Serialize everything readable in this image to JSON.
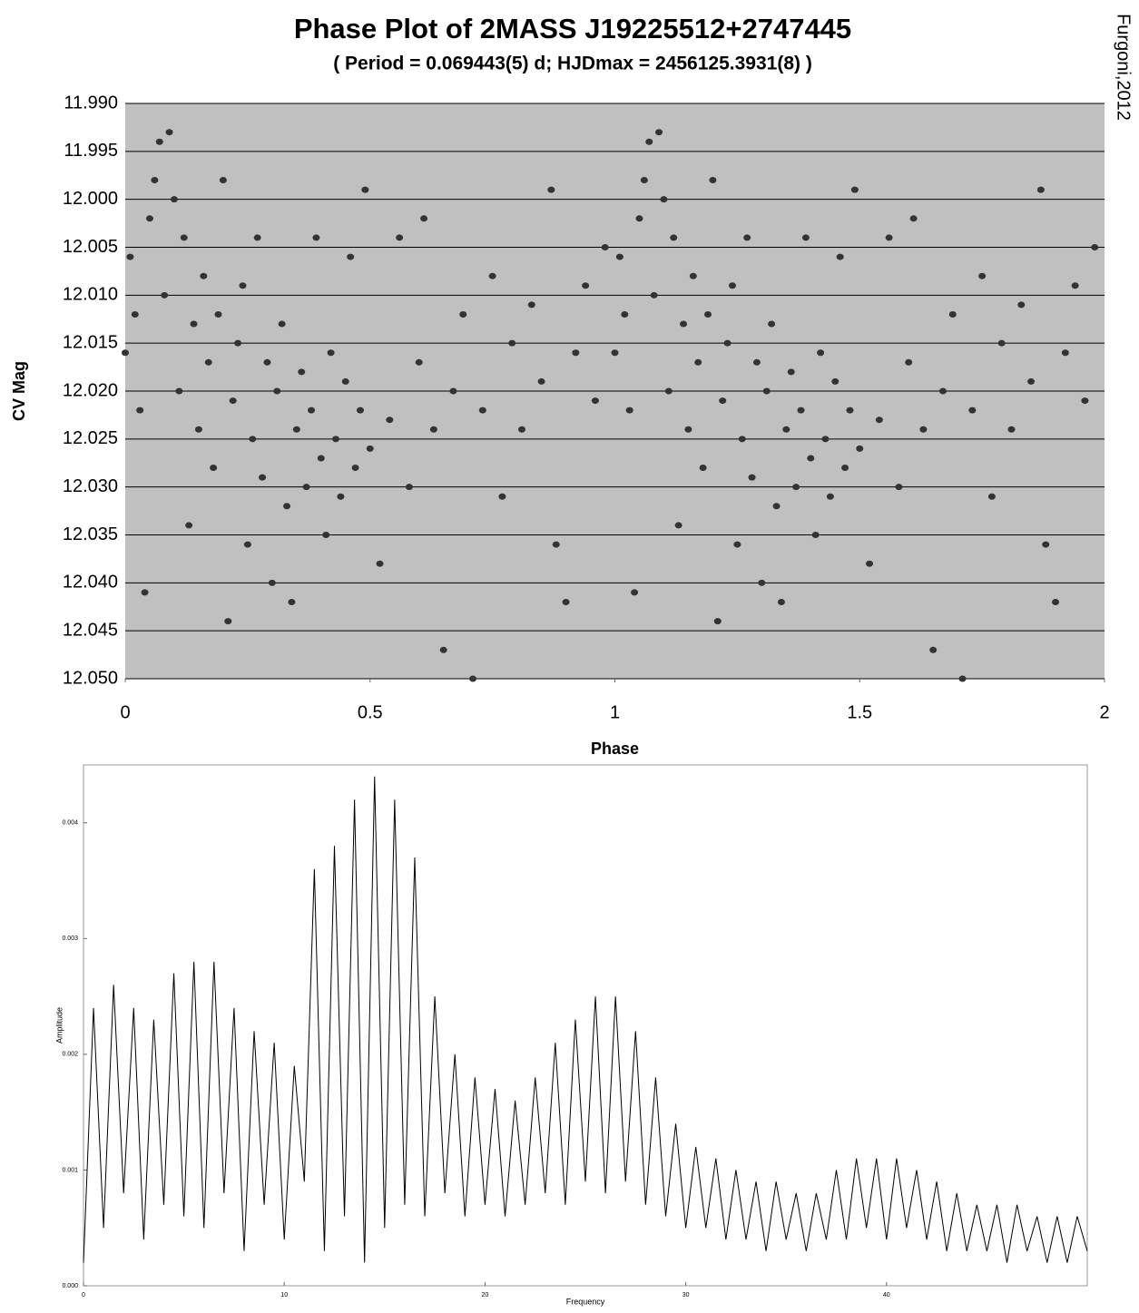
{
  "chart_data": [
    {
      "type": "scatter",
      "title": "Phase Plot of 2MASS J19225512+2747445",
      "subtitle": "( Period = 0.069443(5) d; HJDmax = 2456125.3931(8) )",
      "annotation": "Furgoni,2012",
      "x_label": "Phase",
      "y_label": "CV Mag",
      "color": "#333333",
      "background": "#c0c0c0",
      "grid": true,
      "xlim": [
        0,
        2
      ],
      "xticks": [
        0,
        0.5,
        1,
        1.5,
        2
      ],
      "ylim": [
        12.05,
        11.99
      ],
      "yticks": [
        {
          "value": 11.99,
          "label": "11.990"
        },
        11.995,
        {
          "value": 12.0,
          "label": "12.000"
        },
        12.005,
        {
          "value": 12.01,
          "label": "12.010"
        },
        12.015,
        {
          "value": 12.02,
          "label": "12.020"
        },
        12.025,
        {
          "value": 12.03,
          "label": "12.030"
        },
        12.035,
        {
          "value": 12.04,
          "label": "12.040"
        },
        12.045,
        {
          "value": 12.05,
          "label": "12.050"
        }
      ],
      "x": [
        0.0,
        0.01,
        0.02,
        0.03,
        0.04,
        0.05,
        0.06,
        0.07,
        0.08,
        0.09,
        0.1,
        0.11,
        0.12,
        0.13,
        0.14,
        0.15,
        0.16,
        0.17,
        0.18,
        0.19,
        0.2,
        0.21,
        0.22,
        0.23,
        0.24,
        0.25,
        0.26,
        0.27,
        0.28,
        0.29,
        0.3,
        0.31,
        0.32,
        0.33,
        0.34,
        0.35,
        0.36,
        0.37,
        0.38,
        0.39,
        0.4,
        0.41,
        0.42,
        0.43,
        0.44,
        0.45,
        0.46,
        0.47,
        0.48,
        0.49,
        0.5,
        0.52,
        0.54,
        0.56,
        0.58,
        0.6,
        0.61,
        0.63,
        0.65,
        0.67,
        0.69,
        0.71,
        0.73,
        0.75,
        0.77,
        0.79,
        0.81,
        0.83,
        0.85,
        0.87,
        0.88,
        0.9,
        0.92,
        0.94,
        0.96,
        0.98,
        1.0,
        1.01,
        1.02,
        1.03,
        1.04,
        1.05,
        1.06,
        1.07,
        1.08,
        1.09,
        1.1,
        1.11,
        1.12,
        1.13,
        1.14,
        1.15,
        1.16,
        1.17,
        1.18,
        1.19,
        1.2,
        1.21,
        1.22,
        1.23,
        1.24,
        1.25,
        1.26,
        1.27,
        1.28,
        1.29,
        1.3,
        1.31,
        1.32,
        1.33,
        1.34,
        1.35,
        1.36,
        1.37,
        1.38,
        1.39,
        1.4,
        1.41,
        1.42,
        1.43,
        1.44,
        1.45,
        1.46,
        1.47,
        1.48,
        1.49,
        1.5,
        1.52,
        1.54,
        1.56,
        1.58,
        1.6,
        1.61,
        1.63,
        1.65,
        1.67,
        1.69,
        1.71,
        1.73,
        1.75,
        1.77,
        1.79,
        1.81,
        1.83,
        1.85,
        1.87,
        1.88,
        1.9,
        1.92,
        1.94,
        1.96,
        1.98
      ],
      "values": [
        12.016,
        12.006,
        12.012,
        12.022,
        12.041,
        12.002,
        11.998,
        11.994,
        12.01,
        11.993,
        12.0,
        12.02,
        12.004,
        12.034,
        12.013,
        12.024,
        12.008,
        12.017,
        12.028,
        12.012,
        11.998,
        12.044,
        12.021,
        12.015,
        12.009,
        12.036,
        12.025,
        12.004,
        12.029,
        12.017,
        12.04,
        12.02,
        12.013,
        12.032,
        12.042,
        12.024,
        12.018,
        12.03,
        12.022,
        12.004,
        12.027,
        12.035,
        12.016,
        12.025,
        12.031,
        12.019,
        12.006,
        12.028,
        12.022,
        11.999,
        12.026,
        12.038,
        12.023,
        12.004,
        12.03,
        12.017,
        12.002,
        12.024,
        12.047,
        12.02,
        12.012,
        12.05,
        12.022,
        12.008,
        12.031,
        12.015,
        12.024,
        12.011,
        12.019,
        11.999,
        12.036,
        12.042,
        12.016,
        12.009,
        12.021,
        12.005,
        12.016,
        12.006,
        12.012,
        12.022,
        12.041,
        12.002,
        11.998,
        11.994,
        12.01,
        11.993,
        12.0,
        12.02,
        12.004,
        12.034,
        12.013,
        12.024,
        12.008,
        12.017,
        12.028,
        12.012,
        11.998,
        12.044,
        12.021,
        12.015,
        12.009,
        12.036,
        12.025,
        12.004,
        12.029,
        12.017,
        12.04,
        12.02,
        12.013,
        12.032,
        12.042,
        12.024,
        12.018,
        12.03,
        12.022,
        12.004,
        12.027,
        12.035,
        12.016,
        12.025,
        12.031,
        12.019,
        12.006,
        12.028,
        12.022,
        11.999,
        12.026,
        12.038,
        12.023,
        12.004,
        12.03,
        12.017,
        12.002,
        12.024,
        12.047,
        12.02,
        12.012,
        12.05,
        12.022,
        12.008,
        12.031,
        12.015,
        12.024,
        12.011,
        12.019,
        11.999,
        12.036,
        12.042,
        12.016,
        12.009,
        12.021,
        12.005
      ]
    },
    {
      "type": "line",
      "x_label": "Frequency",
      "y_label": "Amplitude",
      "color": "#000000",
      "background": "#ffffff",
      "grid": false,
      "xlim": [
        0,
        50
      ],
      "xticks": [
        0,
        10,
        20,
        30,
        40
      ],
      "ylim": [
        0,
        0.0045
      ],
      "yticks": [
        {
          "value": 0,
          "label": "0.000"
        },
        0.001,
        0.002,
        0.003,
        0.004
      ],
      "x": [
        0,
        0.5,
        1,
        1.5,
        2,
        2.5,
        3,
        3.5,
        4,
        4.5,
        5,
        5.5,
        6,
        6.5,
        7,
        7.5,
        8,
        8.5,
        9,
        9.5,
        10,
        10.5,
        11,
        11.5,
        12,
        12.5,
        13,
        13.5,
        14,
        14.5,
        15,
        15.5,
        16,
        16.5,
        17,
        17.5,
        18,
        18.5,
        19,
        19.5,
        20,
        20.5,
        21,
        21.5,
        22,
        22.5,
        23,
        23.5,
        24,
        24.5,
        25,
        25.5,
        26,
        26.5,
        27,
        27.5,
        28,
        28.5,
        29,
        29.5,
        30,
        30.5,
        31,
        31.5,
        32,
        32.5,
        33,
        33.5,
        34,
        34.5,
        35,
        35.5,
        36,
        36.5,
        37,
        37.5,
        38,
        38.5,
        39,
        39.5,
        40,
        40.5,
        41,
        41.5,
        42,
        42.5,
        43,
        43.5,
        44,
        44.5,
        45,
        45.5,
        46,
        46.5,
        47,
        47.5,
        48,
        48.5,
        49,
        49.5,
        50
      ],
      "values": [
        0.0002,
        0.0024,
        0.0005,
        0.0026,
        0.0008,
        0.0024,
        0.0004,
        0.0023,
        0.0007,
        0.0027,
        0.0006,
        0.0028,
        0.0005,
        0.0028,
        0.0008,
        0.0024,
        0.0003,
        0.0022,
        0.0007,
        0.0021,
        0.0004,
        0.0019,
        0.0009,
        0.0036,
        0.0003,
        0.0038,
        0.0006,
        0.0042,
        0.0002,
        0.0044,
        0.0005,
        0.0042,
        0.0007,
        0.0037,
        0.0006,
        0.0025,
        0.0008,
        0.002,
        0.0006,
        0.0018,
        0.0007,
        0.0017,
        0.0006,
        0.0016,
        0.0007,
        0.0018,
        0.0008,
        0.0021,
        0.0007,
        0.0023,
        0.0009,
        0.0025,
        0.0008,
        0.0025,
        0.0009,
        0.0022,
        0.0007,
        0.0018,
        0.0006,
        0.0014,
        0.0005,
        0.0012,
        0.0005,
        0.0011,
        0.0004,
        0.001,
        0.0004,
        0.0009,
        0.0003,
        0.0009,
        0.0004,
        0.0008,
        0.0003,
        0.0008,
        0.0004,
        0.001,
        0.0004,
        0.0011,
        0.0005,
        0.0011,
        0.0004,
        0.0011,
        0.0005,
        0.001,
        0.0004,
        0.0009,
        0.0003,
        0.0008,
        0.0003,
        0.0007,
        0.0003,
        0.0007,
        0.0002,
        0.0007,
        0.0003,
        0.0006,
        0.0002,
        0.0006,
        0.0002,
        0.0006,
        0.0003
      ]
    }
  ]
}
